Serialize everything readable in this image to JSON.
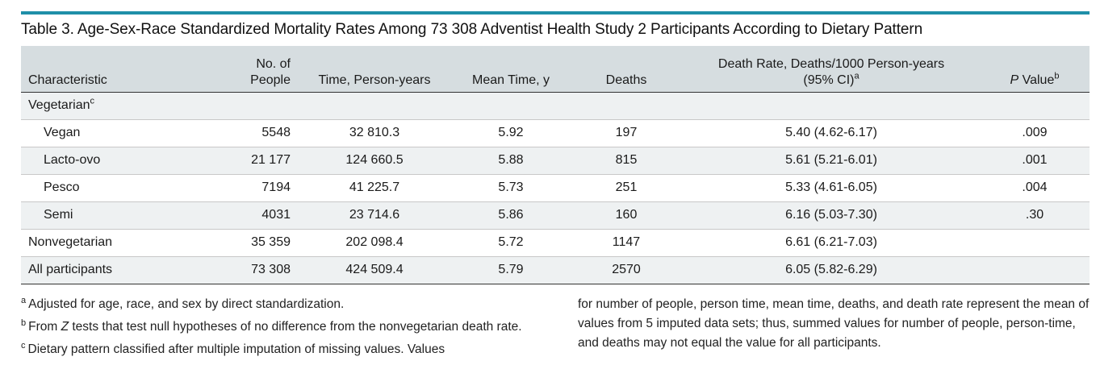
{
  "title": "Table 3. Age-Sex-Race Standardized Mortality Rates Among 73 308 Adventist Health Study 2 Participants According to Dietary Pattern",
  "headers": {
    "characteristic": "Characteristic",
    "people_line1": "No. of",
    "people_line2": "People",
    "time": "Time, Person-years",
    "mean_time": "Mean Time, y",
    "deaths": "Deaths",
    "rate_line1": "Death Rate, Deaths/1000 Person-years",
    "rate_line2": "(95% CI)",
    "rate_sup": "a",
    "p_italic": "P",
    "p_rest": " Value",
    "p_sup": "b"
  },
  "group": {
    "label": "Vegetarian",
    "sup": "c"
  },
  "rows": [
    {
      "label": "Vegan",
      "people": "5548",
      "time": "32 810.3",
      "mean": "5.92",
      "deaths": "197",
      "rate": "5.40 (4.62-6.17)",
      "p": ".009"
    },
    {
      "label": "Lacto-ovo",
      "people": "21 177",
      "time": "124 660.5",
      "mean": "5.88",
      "deaths": "815",
      "rate": "5.61 (5.21-6.01)",
      "p": ".001"
    },
    {
      "label": "Pesco",
      "people": "7194",
      "time": "41 225.7",
      "mean": "5.73",
      "deaths": "251",
      "rate": "5.33 (4.61-6.05)",
      "p": ".004"
    },
    {
      "label": "Semi",
      "people": "4031",
      "time": "23 714.6",
      "mean": "5.86",
      "deaths": "160",
      "rate": "6.16 (5.03-7.30)",
      "p": ".30"
    },
    {
      "label": "Nonvegetarian",
      "people": "35 359",
      "time": "202 098.4",
      "mean": "5.72",
      "deaths": "1147",
      "rate": "6.61 (6.21-7.03)",
      "p": ""
    },
    {
      "label": "All participants",
      "people": "73 308",
      "time": "424 509.4",
      "mean": "5.79",
      "deaths": "2570",
      "rate": "6.05 (5.82-6.29)",
      "p": ""
    }
  ],
  "footnotes": {
    "a_mark": "a",
    "a_text": "Adjusted for age, race, and sex by direct standardization.",
    "b_mark": "b",
    "b_pre": "From ",
    "b_italic": "Z",
    "b_post": " tests that test null hypotheses of no difference from the nonvegetarian death rate.",
    "c_mark": "c",
    "c_text_left": "Dietary pattern classified after multiple imputation of missing values. Values",
    "c_text_right": "for number of people, person time, mean time, deaths, and death rate represent the mean of values from 5 imputed data sets; thus, summed values for number of people, person-time, and deaths may not equal the value for all participants."
  },
  "colors": {
    "accent_bar": "#1f8fa8",
    "header_bg": "#d6dde0",
    "band_bg": "#eef1f2"
  }
}
